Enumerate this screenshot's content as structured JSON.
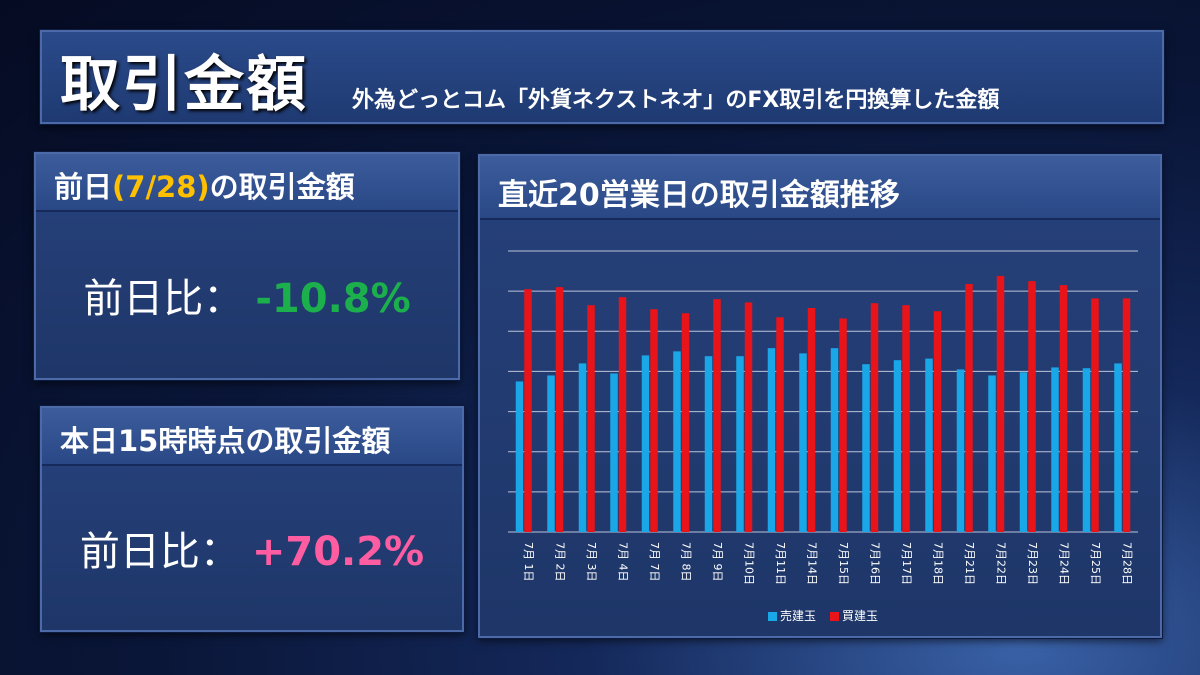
{
  "title": {
    "main": "取引金額",
    "sub": "外為どっとコム「外貨ネクストネオ」のFX取引を円換算した金額"
  },
  "prev_card": {
    "title_pre": "前日",
    "title_date": "(7/28)",
    "title_post": "の取引金額",
    "label": "前日比：",
    "value": "-10.8%"
  },
  "today_card": {
    "title": "本日15時時点の取引金額",
    "label": "前日比：",
    "value": "+70.2%"
  },
  "chart_card": {
    "title": "直近20営業日の取引金額推移"
  },
  "colors": {
    "sell": "#1aa7e8",
    "buy": "#e8141a",
    "prev_date": "#ffc000",
    "prev_value": "#1cb04d",
    "today_value": "#ff5da2"
  },
  "chart_data": {
    "type": "bar",
    "title": "直近20営業日の取引金額推移",
    "categories": [
      "7月 1日",
      "7月 2日",
      "7月 3日",
      "7月 4日",
      "7月 7日",
      "7月 8日",
      "7月 9日",
      "7月10日",
      "7月11日",
      "7月14日",
      "7月15日",
      "7月16日",
      "7月17日",
      "7月18日",
      "7月21日",
      "7月22日",
      "7月23日",
      "7月24日",
      "7月25日",
      "7月28日"
    ],
    "series": [
      {
        "name": "売建玉",
        "color": "#1aa7e8",
        "values": [
          3.75,
          3.9,
          4.2,
          3.95,
          4.4,
          4.5,
          4.38,
          4.38,
          4.58,
          4.45,
          4.58,
          4.18,
          4.28,
          4.32,
          4.05,
          3.9,
          3.98,
          4.1,
          4.08,
          4.2
        ]
      },
      {
        "name": "買建玉",
        "color": "#e8141a",
        "values": [
          6.05,
          6.1,
          5.65,
          5.85,
          5.55,
          5.45,
          5.8,
          5.72,
          5.35,
          5.58,
          5.32,
          5.7,
          5.65,
          5.5,
          6.18,
          6.38,
          6.25,
          6.15,
          5.82,
          5.82
        ]
      }
    ],
    "ylim": [
      0,
      7
    ],
    "grid": true,
    "legend": "bottom-center"
  }
}
